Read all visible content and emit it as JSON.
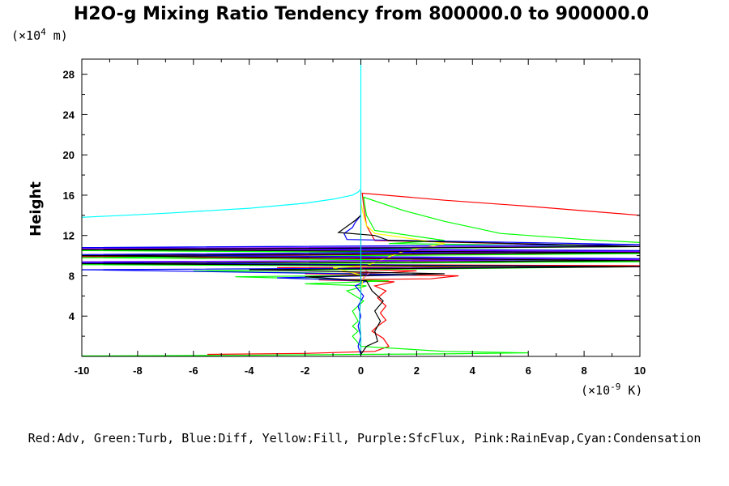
{
  "chart_data": {
    "type": "line",
    "title": "H2O-g Mixing Ratio Tendency from 800000.0 to 900000.0",
    "ylabel": "Height",
    "yunit_prefix": "(×10",
    "yunit_exp": "4",
    "yunit_suffix": " m)",
    "xunit_prefix": "(×10",
    "xunit_exp": "-9",
    "xunit_suffix": " K)",
    "xlim": [
      -10,
      10
    ],
    "ylim": [
      0,
      29.5
    ],
    "xticks": [
      -10,
      -8,
      -6,
      -4,
      -2,
      0,
      2,
      4,
      6,
      8,
      10
    ],
    "yticks": [
      4,
      8,
      12,
      16,
      20,
      24,
      28
    ],
    "grid": false,
    "legend_text": "Red:Adv, Green:Turb, Blue:Diff, Yellow:Fill, Purple:SfcFlux, Pink:RainEvap,Cyan:Condensation",
    "series": [
      {
        "color": "#ff0000",
        "points": [
          [
            -5.5,
            0.2
          ],
          [
            -2,
            0.3
          ],
          [
            0.5,
            0.5
          ],
          [
            1.0,
            1.0
          ],
          [
            0.8,
            1.8
          ],
          [
            0.4,
            2.5
          ],
          [
            0.6,
            3.0
          ],
          [
            0.9,
            3.6
          ],
          [
            0.7,
            4.3
          ],
          [
            0.9,
            5.0
          ],
          [
            0.6,
            5.8
          ],
          [
            0.9,
            6.5
          ],
          [
            0.5,
            7.0
          ],
          [
            1.2,
            7.4
          ],
          [
            -1.5,
            7.6
          ],
          [
            2.5,
            7.7
          ],
          [
            3.5,
            8.0
          ],
          [
            -2,
            8.2
          ],
          [
            1.0,
            8.3
          ],
          [
            2,
            8.5
          ],
          [
            -3,
            8.8
          ],
          [
            10,
            9.0
          ],
          [
            -10,
            9.2
          ],
          [
            10,
            9.5
          ],
          [
            -10,
            9.9
          ],
          [
            10,
            10.3
          ],
          [
            -10,
            10.6
          ],
          [
            10,
            10.9
          ],
          [
            0.5,
            11.5
          ],
          [
            0.2,
            13
          ],
          [
            0.1,
            15.0
          ],
          [
            0.05,
            16.2
          ],
          [
            3,
            15.5
          ],
          [
            6,
            14.9
          ],
          [
            10,
            14.0
          ]
        ]
      },
      {
        "color": "#00ff00",
        "points": [
          [
            -10,
            0.05
          ],
          [
            -5,
            0.1
          ],
          [
            0,
            0.2
          ],
          [
            3,
            0.25
          ],
          [
            6,
            0.35
          ],
          [
            3,
            0.5
          ],
          [
            0,
            1.0
          ],
          [
            -0.3,
            2.0
          ],
          [
            -0.1,
            2.5
          ],
          [
            -0.3,
            3.0
          ],
          [
            -0.1,
            3.5
          ],
          [
            -0.3,
            4.5
          ],
          [
            0.1,
            5.5
          ],
          [
            -0.5,
            6.5
          ],
          [
            0.2,
            7.0
          ],
          [
            -2,
            7.2
          ],
          [
            1,
            7.5
          ],
          [
            -4.5,
            7.9
          ],
          [
            2,
            8.1
          ],
          [
            -6,
            8.5
          ],
          [
            3,
            8.7
          ],
          [
            10,
            8.9
          ],
          [
            -10,
            9.1
          ],
          [
            10,
            9.4
          ],
          [
            -10,
            9.8
          ],
          [
            10,
            10.2
          ],
          [
            -10,
            10.5
          ],
          [
            10,
            10.9
          ],
          [
            1,
            11.2
          ],
          [
            3,
            11.5
          ],
          [
            0.5,
            12.5
          ],
          [
            0.2,
            14
          ],
          [
            0.1,
            15.8
          ],
          [
            1.5,
            14.5
          ],
          [
            3,
            13.4
          ],
          [
            5,
            12.2
          ],
          [
            8,
            11.6
          ],
          [
            10,
            11.3
          ]
        ]
      },
      {
        "color": "#0000ff",
        "points": [
          [
            0,
            0.2
          ],
          [
            -0.1,
            1
          ],
          [
            0,
            2
          ],
          [
            -0.1,
            3
          ],
          [
            0,
            4
          ],
          [
            -0.1,
            5
          ],
          [
            0.1,
            6
          ],
          [
            -0.2,
            7
          ],
          [
            0.2,
            7.5
          ],
          [
            -3,
            7.8
          ],
          [
            2,
            8.1
          ],
          [
            -10,
            8.6
          ],
          [
            10,
            8.9
          ],
          [
            -10,
            9.3
          ],
          [
            10,
            9.7
          ],
          [
            -10,
            10.1
          ],
          [
            10,
            10.5
          ],
          [
            -10,
            10.8
          ],
          [
            10,
            11.1
          ],
          [
            -0.5,
            11.6
          ],
          [
            -0.6,
            12.2
          ],
          [
            -0.3,
            12.8
          ],
          [
            -0.2,
            13.3
          ],
          [
            0,
            14
          ]
        ]
      },
      {
        "color": "#ffff00",
        "points": [
          [
            0,
            6.5
          ],
          [
            0.1,
            8
          ],
          [
            -1,
            8.8
          ],
          [
            0.2,
            9
          ],
          [
            1.5,
            10.4
          ],
          [
            3,
            11.2
          ],
          [
            2,
            11.6
          ],
          [
            0.5,
            12.2
          ],
          [
            0.2,
            13
          ],
          [
            0.1,
            14
          ],
          [
            0,
            15.2
          ]
        ]
      },
      {
        "color": "#7f00ff",
        "points": [
          [
            -10,
            9.4
          ],
          [
            10,
            9.6
          ],
          [
            -10,
            10.0
          ],
          [
            10,
            10.4
          ],
          [
            -10,
            10.7
          ],
          [
            10,
            10.95
          ]
        ]
      },
      {
        "color": "#ff69b4",
        "points": [
          [
            0,
            7.5
          ],
          [
            0.3,
            8.3
          ],
          [
            0,
            8.8
          ]
        ]
      },
      {
        "color": "#000000",
        "points": [
          [
            0,
            0.2
          ],
          [
            0.2,
            1
          ],
          [
            0.6,
            1.5
          ],
          [
            0.5,
            2.5
          ],
          [
            0.7,
            3.5
          ],
          [
            0.5,
            4.5
          ],
          [
            0.8,
            5.5
          ],
          [
            0.4,
            6.5
          ],
          [
            0.2,
            7.5
          ],
          [
            -2,
            7.9
          ],
          [
            3,
            8.2
          ],
          [
            -4,
            8.6
          ],
          [
            10,
            8.9
          ],
          [
            -10,
            9.2
          ],
          [
            10,
            9.5
          ],
          [
            -10,
            10.0
          ],
          [
            10,
            10.3
          ],
          [
            -10,
            10.6
          ],
          [
            10,
            10.9
          ],
          [
            1,
            11.5
          ],
          [
            0.5,
            12.0
          ],
          [
            -0.8,
            12.3
          ],
          [
            -0.5,
            12.9
          ],
          [
            -0.2,
            13.5
          ],
          [
            0,
            14
          ]
        ]
      },
      {
        "color": "#00ffff",
        "points": [
          [
            -10,
            13.8
          ],
          [
            -7,
            14.2
          ],
          [
            -4,
            14.7
          ],
          [
            -2,
            15.2
          ],
          [
            -1,
            15.6
          ],
          [
            -0.3,
            16.0
          ],
          [
            -0.1,
            16.3
          ],
          [
            0,
            16.6
          ],
          [
            0,
            20
          ],
          [
            0,
            24
          ],
          [
            0,
            29.5
          ]
        ]
      },
      {
        "color": "#00cccc",
        "points": [
          [
            0,
            0
          ],
          [
            0,
            2
          ],
          [
            -0.05,
            4
          ],
          [
            0,
            6
          ],
          [
            0,
            8
          ],
          [
            0,
            10
          ],
          [
            0,
            12
          ],
          [
            0,
            14
          ],
          [
            0,
            16.5
          ]
        ]
      }
    ]
  }
}
